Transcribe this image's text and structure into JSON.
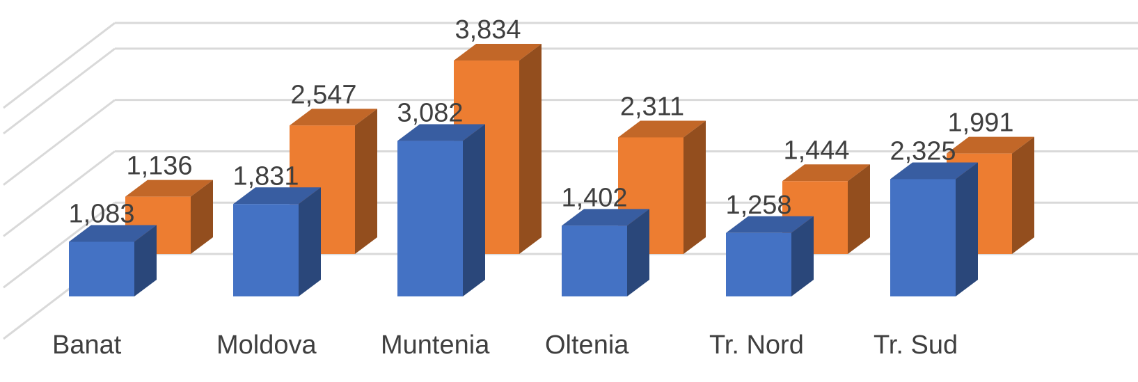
{
  "chart_data": {
    "type": "bar",
    "style": "3d-clustered-column",
    "categories": [
      "Banat",
      "Moldova",
      "Muntenia",
      "Oltenia",
      "Tr. Nord",
      "Tr. Sud"
    ],
    "series": [
      {
        "values": [
          1.083,
          1.831,
          3.082,
          1.402,
          1.258,
          2.325
        ],
        "color": "#4472c4"
      },
      {
        "values": [
          1.136,
          2.547,
          3.834,
          2.311,
          1.444,
          1.991
        ],
        "color": "#ed7d31"
      }
    ],
    "data_labels": {
      "series_0": [
        "1,083",
        "1,831",
        "3,082",
        "1,402",
        "1,258",
        "2,325"
      ],
      "series_1": [
        "1,136",
        "2,547",
        "3,834",
        "2,311",
        "1,444",
        "1,991"
      ]
    },
    "title": "",
    "xlabel": "",
    "ylabel": "",
    "ylim": [
      0,
      4.5
    ],
    "grid": true,
    "legend": "none"
  }
}
